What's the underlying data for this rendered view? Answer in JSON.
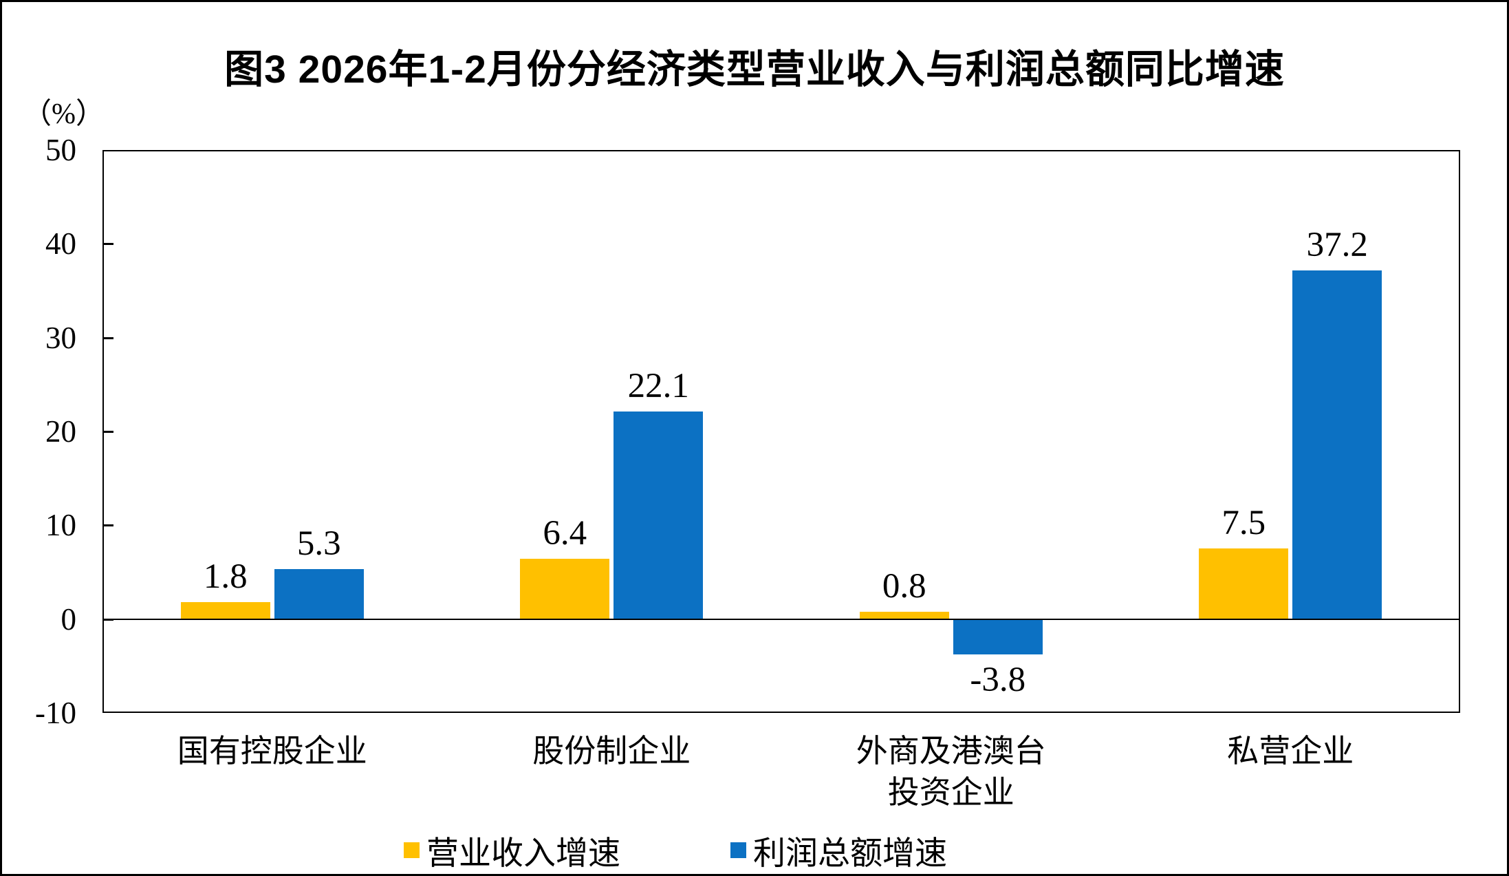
{
  "chart_data": {
    "type": "bar",
    "title": "图3  2026年1-2月份分经济类型营业收入与利润总额同比增速",
    "unit_label": "（%）",
    "categories": [
      "国有控股企业",
      "股份制企业",
      "外商及港澳台\n投资企业",
      "私营企业"
    ],
    "series": [
      {
        "name": "营业收入增速",
        "color": "#FFC000",
        "values": [
          1.8,
          6.4,
          0.8,
          7.5
        ]
      },
      {
        "name": "利润总额增速",
        "color": "#0C71C3",
        "values": [
          5.3,
          22.1,
          -3.8,
          37.2
        ]
      }
    ],
    "ylim": [
      -10,
      50
    ],
    "yticks": [
      50,
      40,
      30,
      20,
      10,
      0,
      -10
    ],
    "grid": false,
    "data_labels": true,
    "legend_position": "bottom"
  }
}
